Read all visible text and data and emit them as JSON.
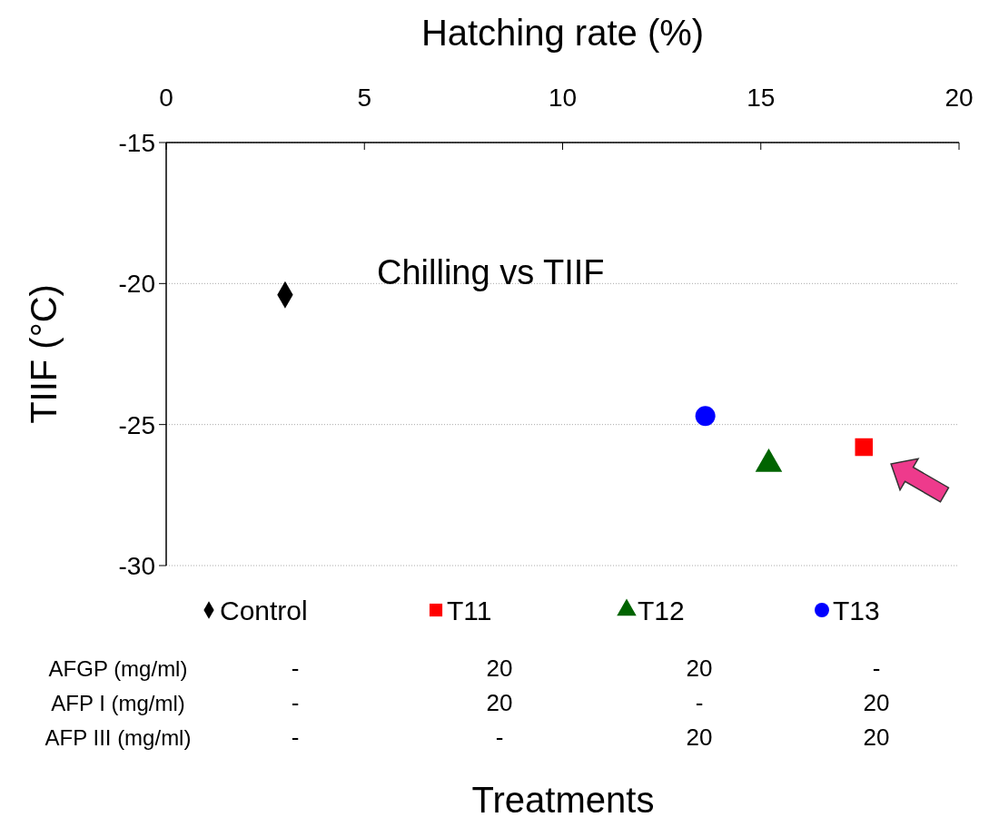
{
  "chart_data": {
    "type": "scatter",
    "title": "Chilling vs TIIF",
    "xlabel": "Hatching rate (%)",
    "ylabel": "TIIF (°C)",
    "xlim": [
      0,
      20
    ],
    "xticks": [
      0,
      5,
      10,
      15,
      20
    ],
    "ylim": [
      -30,
      -15
    ],
    "yticks": [
      -30,
      -25,
      -20,
      -15
    ],
    "grid": "y",
    "legend": "bottom",
    "series": [
      {
        "name": "Control",
        "color": "#000000",
        "marker": "diamond",
        "x": [
          3.0
        ],
        "values": [
          -20.4
        ]
      },
      {
        "name": "T11",
        "color": "#ff0000",
        "marker": "square",
        "x": [
          17.6
        ],
        "values": [
          -25.8
        ]
      },
      {
        "name": "T12",
        "color": "#006400",
        "marker": "triangle",
        "x": [
          15.2
        ],
        "values": [
          -26.4
        ]
      },
      {
        "name": "T13",
        "color": "#0000ff",
        "marker": "circle",
        "x": [
          13.6
        ],
        "values": [
          -24.7
        ]
      }
    ],
    "annotations": [
      "AFGP (mg/ml)",
      "-",
      "20",
      "20",
      "-",
      "AFP I (mg/ml)",
      "-",
      "20",
      "-",
      "20",
      "AFP III (mg/ml)",
      "-",
      "-",
      "20",
      "20",
      "Treatments"
    ]
  }
}
